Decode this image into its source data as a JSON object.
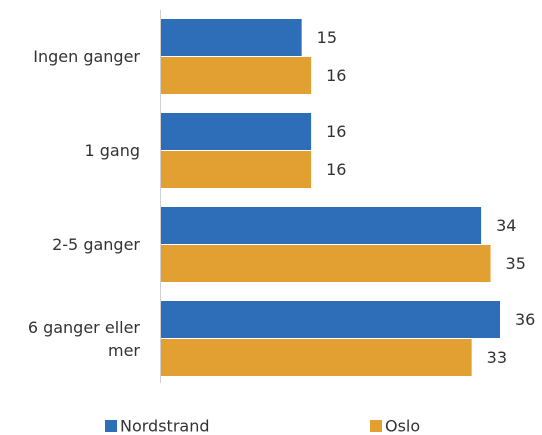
{
  "chart_data": {
    "type": "bar",
    "orientation": "horizontal",
    "categories": [
      "Ingen ganger",
      "1 gang",
      "2-5 ganger",
      "6 ganger eller mer"
    ],
    "series": [
      {
        "name": "Nordstrand",
        "color": "#2e6db8",
        "values": [
          15,
          16,
          34,
          36
        ]
      },
      {
        "name": "Oslo",
        "color": "#e2a033",
        "values": [
          16,
          16,
          35,
          33
        ]
      }
    ]
  }
}
